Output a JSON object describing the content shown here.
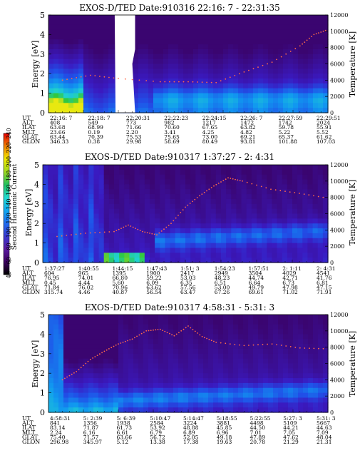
{
  "figure": {
    "energy_axis": {
      "label": "Energy [eV]",
      "ticks": [
        "0",
        "1",
        "2",
        "3",
        "4",
        "5"
      ],
      "range": [
        0,
        5
      ]
    },
    "temperature_axis": {
      "label": "Temperature [K]",
      "ticks": [
        "0",
        "2000",
        "4000",
        "6000",
        "8000",
        "10000",
        "12000"
      ],
      "range": [
        0,
        12000
      ]
    },
    "colorbar": {
      "label": "Second Harmonic Current",
      "ticks": [
        "40",
        "60",
        "80",
        "100",
        "120",
        "140",
        "160",
        "180",
        "200",
        "220",
        "240"
      ],
      "range": [
        40,
        240
      ],
      "colors": [
        "#000000",
        "#3c0060",
        "#5a1aa0",
        "#3838d0",
        "#1f6cf0",
        "#10a8f0",
        "#20d8d0",
        "#20c060",
        "#9cd820",
        "#f0e800",
        "#f08000",
        "#e00000"
      ]
    },
    "row_labels": [
      "UT",
      "ALT",
      "ILAT",
      "MLT",
      "GLAT",
      "GLON"
    ]
  },
  "chart_data": [
    {
      "type": "heatmap",
      "title": "EXOS-D/TED   Date:910316  22:16: 7 - 22:31:35",
      "ylabel": "Energy [eV]",
      "y2label": "Temperature [K]",
      "ylim": [
        0,
        5
      ],
      "y2lim": [
        0,
        12000
      ],
      "orbit_table": {
        "UT": [
          "22:16: 7",
          "22:18: 7",
          "22:20:31",
          "22:22:23",
          "22:24:15",
          "22:26: 7",
          "22:27:59",
          "22:29:51"
        ],
        "ALT": [
          "408",
          "549",
          "773",
          "982",
          "1217",
          "1472",
          "1742",
          "2024"
        ],
        "ILAT": [
          "63.68",
          "68.99",
          "71.66",
          "70.60",
          "67.65",
          "63.82",
          "59.78",
          "55.91"
        ],
        "MLT": [
          "23.66",
          "0.19",
          "2.20",
          "3.41",
          "4.25",
          "4.82",
          "5.22",
          "5.52"
        ],
        "GLAT": [
          "63.44",
          "70.39",
          "75.53",
          "75.65",
          "73.00",
          "69.21",
          "65.37",
          "61.62"
        ],
        "GLON": [
          "346.33",
          "0.38",
          "29.98",
          "58.69",
          "80.49",
          "93.81",
          "101.88",
          "107.03"
        ]
      },
      "temperature_trace": {
        "time_fraction": [
          0.05,
          0.15,
          0.25,
          0.4,
          0.5,
          0.6,
          0.7,
          0.8,
          0.9,
          0.95,
          1.0
        ],
        "temperature_K": [
          4000,
          4600,
          4200,
          3800,
          3800,
          3700,
          5000,
          6200,
          8200,
          9600,
          10200
        ]
      }
    },
    {
      "type": "heatmap",
      "title": "EXOS-D/TED   Date:910317  1:37:27 - 2: 4:31",
      "ylabel": "Energy [eV]",
      "y2label": "Temperature [K]",
      "ylim": [
        0,
        5
      ],
      "y2lim": [
        0,
        12000
      ],
      "orbit_table": {
        "UT": [
          "1:37:27",
          "1:40:55",
          "1:44:15",
          "1:47:43",
          "1:51: 3",
          "1:54:23",
          "1:57:51",
          "2: 1:11",
          "2: 4:31"
        ],
        "ALT": [
          "604",
          "965",
          "1395",
          "1900",
          "2417",
          "2949",
          "3504",
          "4029",
          "4541"
        ],
        "ILAT": [
          "76.95",
          "74.01",
          "66.80",
          "59.22",
          "53.03",
          "48.23",
          "44.74",
          "42.71",
          "41.76"
        ],
        "MLT": [
          "0.45",
          "4.44",
          "5.60",
          "6.09",
          "6.35",
          "6.51",
          "6.64",
          "6.73",
          "6.81"
        ],
        "GLAT": [
          "71.84",
          "76.02",
          "70.96",
          "63.62",
          "57.56",
          "53.00",
          "49.79",
          "47.98",
          "47.15"
        ],
        "GLON": [
          "315.74",
          "4.46",
          "40.87",
          "56.54",
          "63.47",
          "67.26",
          "69.61",
          "71.02",
          "71.91"
        ]
      },
      "temperature_trace": {
        "time_fraction": [
          0.05,
          0.15,
          0.25,
          0.3,
          0.35,
          0.4,
          0.45,
          0.5,
          0.55,
          0.6,
          0.65,
          0.7,
          0.8,
          0.9,
          1.0
        ],
        "temperature_K": [
          3200,
          3600,
          3800,
          4600,
          3800,
          3400,
          4800,
          6800,
          8200,
          9400,
          10400,
          10000,
          9000,
          8500,
          7900
        ]
      }
    },
    {
      "type": "heatmap",
      "title": "EXOS-D/TED   Date:910317  4:58:31 - 5:31: 3",
      "ylabel": "Energy [eV]",
      "y2label": "Temperature [K]",
      "ylim": [
        0,
        5
      ],
      "y2lim": [
        0,
        12000
      ],
      "orbit_table": {
        "UT": [
          "4:58:31",
          "5: 2:39",
          "5: 6:39",
          "5:10:47",
          "5:14:47",
          "5:18:55",
          "5:22:55",
          "5:27: 3",
          "5:31: 3"
        ],
        "ALT": [
          "841",
          "1356",
          "1938",
          "2584",
          "3224",
          "3881",
          "4498",
          "5109",
          "5667"
        ],
        "ILAT": [
          "83.14",
          "71.87",
          "61.73",
          "53.92",
          "48.88",
          "45.85",
          "44.50",
          "44.21",
          "44.63"
        ],
        "MLT": [
          "2.24",
          "6.16",
          "6.61",
          "6.79",
          "6.89",
          "6.96",
          "7.01",
          "7.05",
          "7.09"
        ],
        "GLAT": [
          "75.40",
          "71.57",
          "63.66",
          "56.72",
          "52.05",
          "49.18",
          "47.89",
          "47.62",
          "48.04"
        ],
        "GLON": [
          "296.98",
          "345.97",
          "5.12",
          "13.38",
          "17.38",
          "19.63",
          "20.78",
          "21.29",
          "21.31"
        ]
      },
      "temperature_trace": {
        "time_fraction": [
          0.05,
          0.1,
          0.15,
          0.2,
          0.25,
          0.3,
          0.35,
          0.4,
          0.45,
          0.5,
          0.55,
          0.6,
          0.7,
          0.8,
          0.9,
          1.0
        ],
        "temperature_K": [
          4000,
          5000,
          6500,
          7500,
          8400,
          9000,
          10000,
          10200,
          9400,
          10600,
          9300,
          8600,
          8200,
          8400,
          7900,
          7800
        ]
      }
    }
  ]
}
